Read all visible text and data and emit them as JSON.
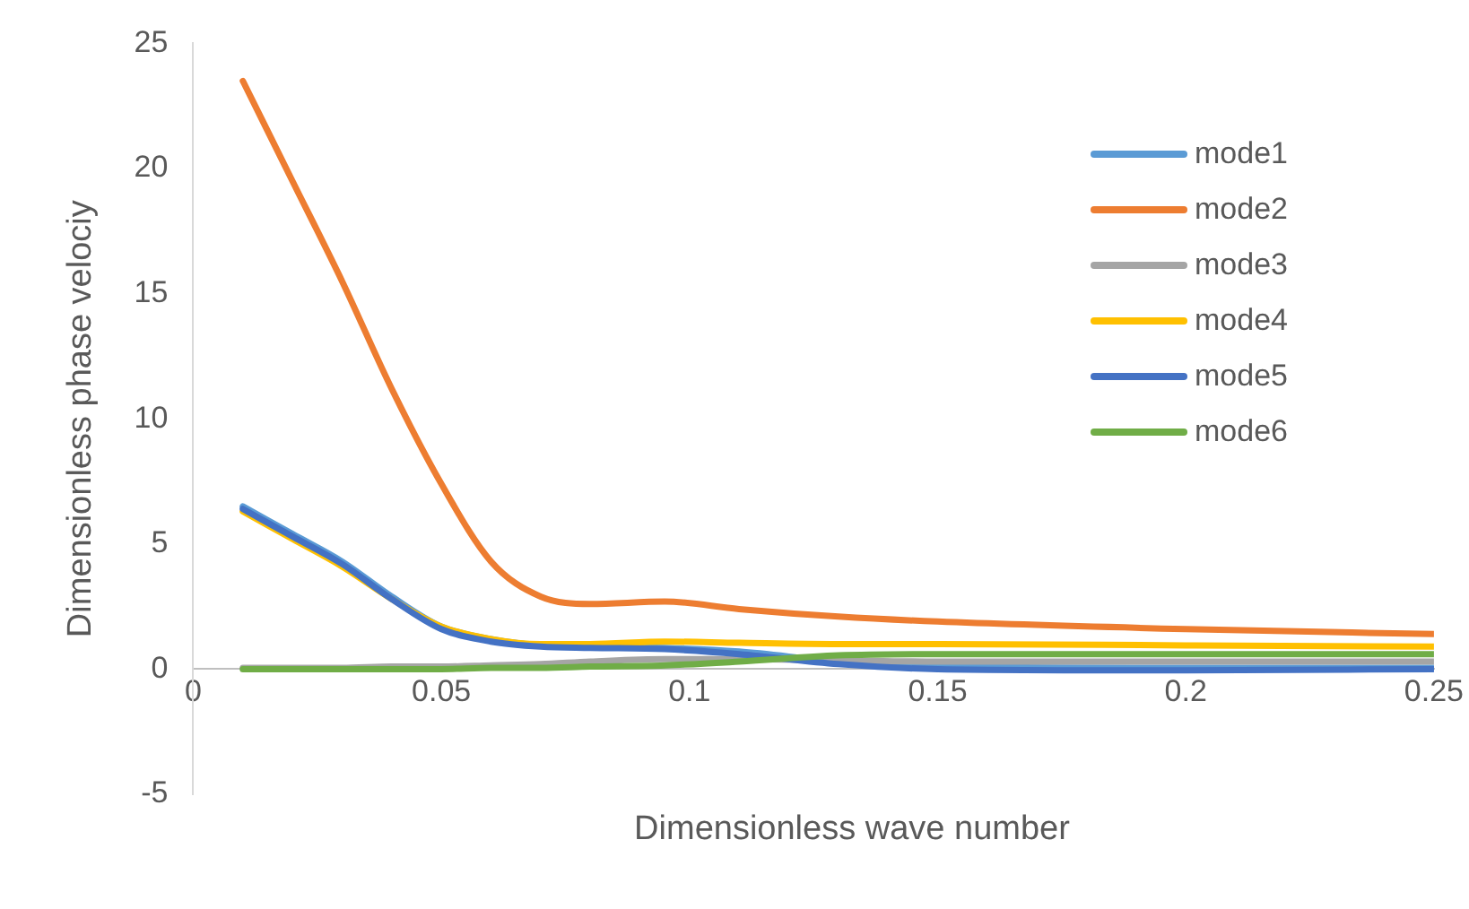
{
  "chart_data": {
    "type": "line",
    "xlabel": "Dimensionless wave number",
    "ylabel": "Dimensionless phase velociy",
    "x": [
      0.01,
      0.02,
      0.03,
      0.04,
      0.05,
      0.06,
      0.07,
      0.08,
      0.095,
      0.11,
      0.13,
      0.15,
      0.2,
      0.25
    ],
    "xlim": [
      0,
      0.25
    ],
    "xticks": [
      0,
      0.05,
      0.1,
      0.15,
      0.2,
      0.25
    ],
    "ylim": [
      -5,
      25
    ],
    "yticks": [
      -5,
      0,
      5,
      10,
      15,
      20,
      25
    ],
    "grid": false,
    "legend": "top right",
    "marker": "none",
    "line_style": "solid",
    "series": [
      {
        "name": "mode1",
        "color": "#5b9bd5",
        "values": [
          6.5,
          5.4,
          4.3,
          2.9,
          1.7,
          1.2,
          0.95,
          0.9,
          0.85,
          0.7,
          0.3,
          0.1,
          0.05,
          0.05
        ]
      },
      {
        "name": "mode2",
        "color": "#ed7d31",
        "values": [
          23.5,
          19.5,
          15.5,
          11.2,
          7.4,
          4.3,
          2.9,
          2.6,
          2.7,
          2.4,
          2.1,
          1.9,
          1.6,
          1.4
        ]
      },
      {
        "name": "mode3",
        "color": "#a5a5a5",
        "values": [
          0.05,
          0.05,
          0.05,
          0.1,
          0.1,
          0.15,
          0.2,
          0.3,
          0.4,
          0.4,
          0.35,
          0.3,
          0.3,
          0.3
        ]
      },
      {
        "name": "mode4",
        "color": "#ffc000",
        "values": [
          6.3,
          5.2,
          4.1,
          2.8,
          1.7,
          1.2,
          1.0,
          1.0,
          1.1,
          1.05,
          1.0,
          1.0,
          0.95,
          0.9
        ]
      },
      {
        "name": "mode5",
        "color": "#4472c4",
        "values": [
          6.4,
          5.3,
          4.2,
          2.8,
          1.6,
          1.1,
          0.9,
          0.85,
          0.8,
          0.6,
          0.2,
          0.0,
          -0.05,
          0.0
        ]
      },
      {
        "name": "mode6",
        "color": "#70ad47",
        "values": [
          0.0,
          0.0,
          0.0,
          0.0,
          0.0,
          0.05,
          0.05,
          0.1,
          0.15,
          0.3,
          0.55,
          0.6,
          0.6,
          0.6
        ]
      }
    ]
  }
}
